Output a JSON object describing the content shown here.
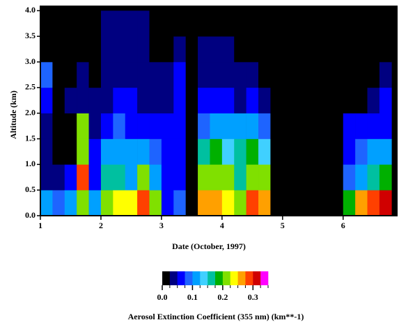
{
  "chart_data": {
    "type": "heatmap",
    "xlabel": "Date (October, 1997)",
    "ylabel": "Altitude (km)",
    "colorbar_label": "Aerosol Extinction Coefficient (355 nm) (km**-1)",
    "xlim": [
      1,
      6.9
    ],
    "ylim": [
      0,
      4.1
    ],
    "xticks": [
      1,
      2,
      3,
      4,
      5,
      6
    ],
    "yticks": [
      {
        "value": 0,
        "label": "0.0"
      },
      0.5,
      {
        "value": 1,
        "label": "1.0"
      },
      1.5,
      {
        "value": 2,
        "label": "2.0"
      },
      2.5,
      {
        "value": 3,
        "label": "3.0"
      },
      3.5,
      {
        "value": 4,
        "label": "4.0"
      }
    ],
    "xbins": [
      1.0,
      1.2,
      1.4,
      1.6,
      1.8,
      2.0,
      2.2,
      2.4,
      2.6,
      2.8,
      3.0,
      3.2,
      3.4,
      3.6,
      3.8,
      4.0,
      4.2,
      4.4,
      4.6,
      4.8,
      5.0,
      5.2,
      5.4,
      5.6,
      5.8,
      6.0,
      6.2,
      6.4,
      6.6,
      6.8
    ],
    "ybins": [
      0,
      0.5,
      1.0,
      1.5,
      2.0,
      2.5,
      3.0,
      3.5,
      4.0
    ],
    "values": [
      [
        0.12,
        0.04,
        0.03,
        0.03,
        0.05,
        0.08,
        0,
        0
      ],
      [
        0.08,
        0.03,
        0.01,
        0.01,
        0.02,
        0.02,
        0.01,
        0
      ],
      [
        0.1,
        0.06,
        0.02,
        0.02,
        0.03,
        0.02,
        0.02,
        0.01
      ],
      [
        0.2,
        0.28,
        0.22,
        0.2,
        0.04,
        0.03,
        0.02,
        0.01
      ],
      [
        0.1,
        0.06,
        0.05,
        0.04,
        0.03,
        0.02,
        0.01,
        0.01
      ],
      [
        0.22,
        0.15,
        0.12,
        0.06,
        0.04,
        0.04,
        0.03,
        0.03
      ],
      [
        0.24,
        0.17,
        0.12,
        0.08,
        0.05,
        0.04,
        0.04,
        0.04
      ],
      [
        0.24,
        0.12,
        0.1,
        0.07,
        0.05,
        0.04,
        0.03,
        0.03
      ],
      [
        0.28,
        0.2,
        0.1,
        0.06,
        0.04,
        0.03,
        0.03,
        0.03
      ],
      [
        0.2,
        0.12,
        0.08,
        0.05,
        0.04,
        0.03,
        0.02,
        0.02
      ],
      [
        0.06,
        0.05,
        0.05,
        0.05,
        0.04,
        0.03,
        0.02,
        0.01
      ],
      [
        0.08,
        0.07,
        0.06,
        0.06,
        0.05,
        0.05,
        0.03,
        0.01
      ],
      [
        0.02,
        0.01,
        0.01,
        0.01,
        0.01,
        0.01,
        0.01,
        0
      ],
      [
        0.25,
        0.2,
        0.15,
        0.08,
        0.05,
        0.04,
        0.03,
        0.02
      ],
      [
        0.26,
        0.22,
        0.18,
        0.12,
        0.05,
        0.04,
        0.03,
        0.02
      ],
      [
        0.24,
        0.2,
        0.14,
        0.1,
        0.05,
        0.04,
        0.03,
        0.02
      ],
      [
        0.2,
        0.17,
        0.15,
        0.1,
        0.04,
        0.03,
        0.02,
        0.01
      ],
      [
        0.28,
        0.22,
        0.18,
        0.12,
        0.05,
        0.04,
        0.02,
        0.01
      ],
      [
        0.26,
        0.2,
        0.14,
        0.08,
        0.04,
        0.02,
        0.01,
        0.01
      ],
      [
        0,
        0,
        0,
        0,
        0,
        0,
        0,
        0
      ],
      [
        0,
        0,
        0,
        0,
        0,
        0,
        0,
        0
      ],
      [
        0,
        0,
        0,
        0,
        0,
        0,
        0,
        0
      ],
      [
        0,
        0,
        0,
        0,
        0,
        0,
        0,
        0
      ],
      [
        0,
        0,
        0,
        0,
        0,
        0,
        0,
        0
      ],
      [
        0,
        0,
        0,
        0,
        0,
        0,
        0,
        0
      ],
      [
        0.18,
        0.09,
        0.07,
        0.06,
        0.02,
        0.01,
        0.01,
        0
      ],
      [
        0.27,
        0.12,
        0.08,
        0.06,
        0.02,
        0.01,
        0.01,
        0
      ],
      [
        0.29,
        0.15,
        0.1,
        0.07,
        0.03,
        0.02,
        0.02,
        0.01
      ],
      [
        0.3,
        0.18,
        0.12,
        0.07,
        0.06,
        0.04,
        0.02,
        0.01
      ]
    ],
    "color_bounds": [
      0,
      0.025,
      0.05,
      0.075,
      0.1,
      0.125,
      0.15,
      0.175,
      0.2,
      0.225,
      0.25,
      0.275,
      0.3,
      0.325,
      0.35
    ],
    "colors": [
      "#000000",
      "#000080",
      "#0000ff",
      "#1e64ff",
      "#00a0ff",
      "#40d0ff",
      "#00c0a0",
      "#00b000",
      "#80e000",
      "#ffff00",
      "#ffa000",
      "#ff4000",
      "#d00000",
      "#ff00ff"
    ],
    "colorbar_ticks": [
      {
        "value": 0,
        "label": "0.0"
      },
      0.1,
      0.2,
      0.3
    ]
  }
}
